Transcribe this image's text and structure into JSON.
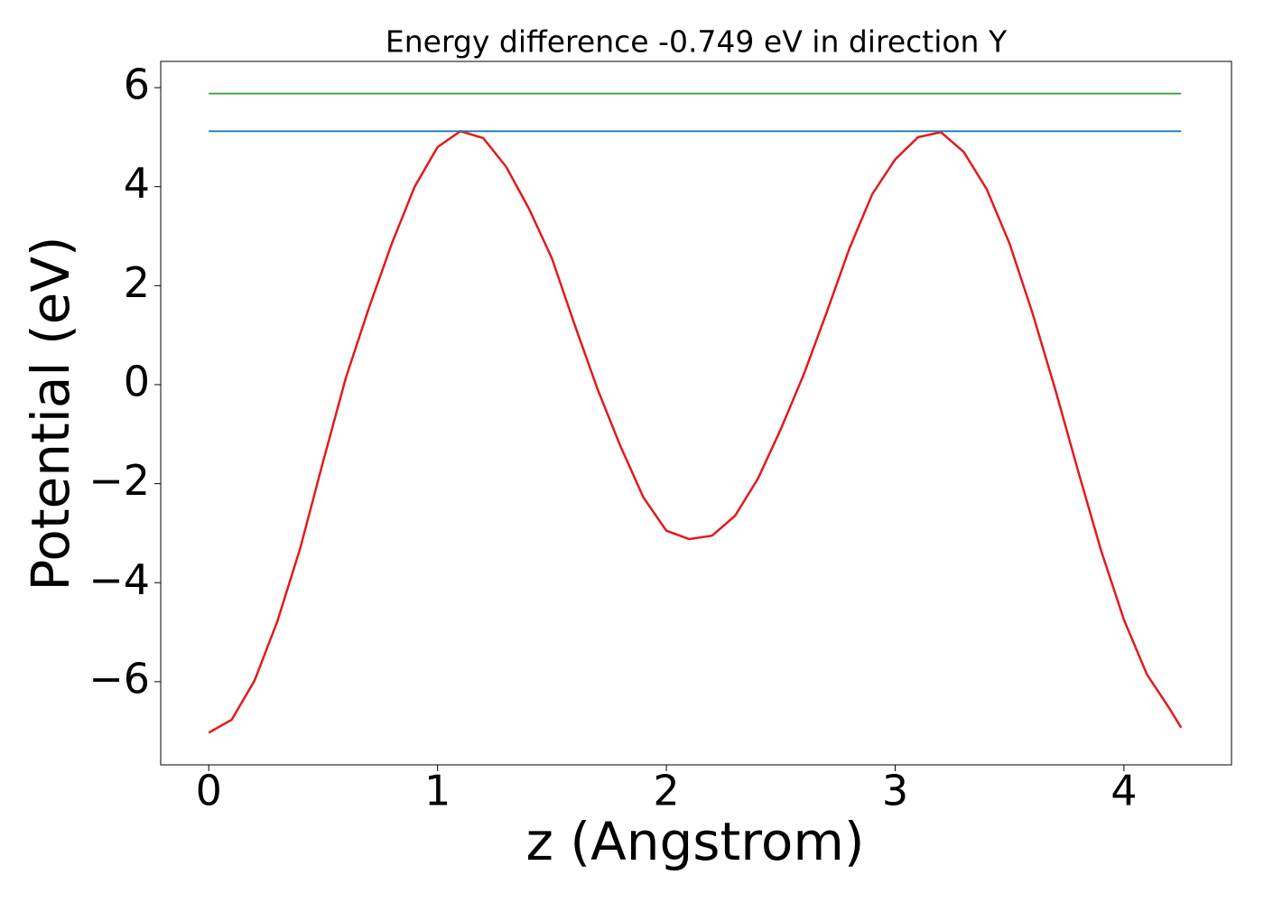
{
  "chart_data": {
    "type": "line",
    "title": "Energy difference -0.749 eV in direction Y",
    "xlabel": "z (Angstrom)",
    "ylabel": "Potential (eV)",
    "xlim": [
      -0.21,
      4.47
    ],
    "ylim": [
      -7.68,
      6.53
    ],
    "xticks": [
      0,
      1,
      2,
      3,
      4
    ],
    "yticks": [
      {
        "value": -6,
        "label": "−6"
      },
      {
        "value": -4,
        "label": "−4"
      },
      {
        "value": -2,
        "label": "−2"
      },
      0,
      2,
      4,
      6
    ],
    "series": [
      {
        "color": "#e31a1c",
        "x": [
          0,
          0.1,
          0.2,
          0.3,
          0.4,
          0.5,
          0.6,
          0.7,
          0.8,
          0.9,
          1.0,
          1.1,
          1.2,
          1.3,
          1.4,
          1.5,
          1.6,
          1.7,
          1.8,
          1.9,
          2.0,
          2.1,
          2.2,
          2.3,
          2.4,
          2.5,
          2.6,
          2.7,
          2.8,
          2.9,
          3.0,
          3.1,
          3.2,
          3.3,
          3.4,
          3.5,
          3.6,
          3.7,
          3.8,
          3.9,
          4.0,
          4.1,
          4.2,
          4.25
        ],
        "values": [
          -7.03,
          -6.77,
          -5.98,
          -4.78,
          -3.3,
          -1.55,
          0.15,
          1.55,
          2.85,
          4.0,
          4.8,
          5.12,
          4.98,
          4.4,
          3.55,
          2.55,
          1.2,
          -0.1,
          -1.25,
          -2.28,
          -2.95,
          -3.12,
          -3.05,
          -2.65,
          -1.9,
          -0.9,
          0.2,
          1.45,
          2.75,
          3.85,
          4.55,
          5.0,
          5.1,
          4.7,
          3.95,
          2.85,
          1.45,
          -0.1,
          -1.75,
          -3.35,
          -4.75,
          -5.85,
          -6.55,
          -6.93
        ]
      },
      {
        "color": "#1f77b4",
        "x": [
          0,
          4.25
        ],
        "values": [
          5.12,
          5.12
        ]
      },
      {
        "color": "#2ca02c",
        "x": [
          0,
          4.25
        ],
        "values": [
          5.88,
          5.88
        ]
      }
    ]
  }
}
